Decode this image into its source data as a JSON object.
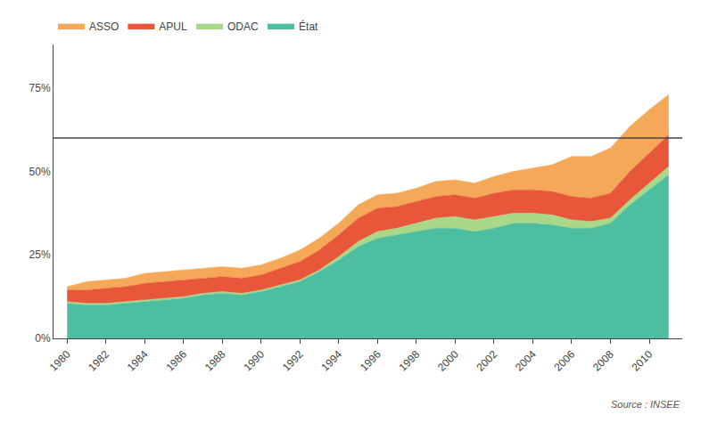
{
  "chart_data": {
    "type": "area",
    "stacked": true,
    "x": [
      1980,
      1981,
      1982,
      1983,
      1984,
      1985,
      1986,
      1987,
      1988,
      1989,
      1990,
      1991,
      1992,
      1993,
      1994,
      1995,
      1996,
      1997,
      1998,
      1999,
      2000,
      2001,
      2002,
      2003,
      2004,
      2005,
      2006,
      2007,
      2008,
      2009,
      2010,
      2011
    ],
    "series": [
      {
        "name": "État",
        "color": "#4DBFA0",
        "values": [
          10.5,
          10.0,
          10.0,
          10.5,
          11.0,
          11.5,
          12.0,
          13.0,
          13.5,
          13.0,
          14.0,
          15.5,
          17.0,
          20.0,
          23.5,
          27.5,
          30.0,
          31.0,
          32.0,
          33.0,
          33.0,
          32.0,
          33.0,
          34.5,
          34.5,
          34.0,
          33.0,
          33.0,
          34.5,
          40.0,
          44.5,
          49.0
        ]
      },
      {
        "name": "ODAC",
        "color": "#A8D888",
        "values": [
          0.5,
          0.5,
          0.5,
          0.5,
          0.5,
          0.5,
          0.5,
          0.5,
          0.5,
          0.5,
          0.5,
          0.5,
          0.5,
          0.5,
          1.0,
          1.5,
          2.0,
          2.0,
          2.5,
          3.0,
          3.5,
          3.5,
          3.5,
          3.0,
          3.0,
          3.0,
          2.5,
          2.0,
          1.5,
          1.5,
          2.0,
          2.5
        ]
      },
      {
        "name": "APUL",
        "color": "#E8573A",
        "values": [
          3.5,
          4.0,
          4.5,
          4.5,
          5.0,
          5.0,
          5.0,
          4.5,
          4.5,
          4.5,
          4.5,
          5.0,
          5.5,
          6.0,
          6.5,
          7.0,
          7.0,
          6.5,
          6.5,
          6.5,
          6.5,
          6.5,
          7.0,
          7.0,
          7.0,
          7.0,
          7.0,
          7.0,
          7.5,
          8.5,
          9.0,
          9.5
        ]
      },
      {
        "name": "ASSO",
        "color": "#F5A858",
        "values": [
          1.0,
          2.5,
          2.5,
          2.5,
          3.0,
          3.0,
          3.0,
          3.0,
          3.0,
          3.0,
          3.0,
          3.0,
          3.5,
          3.5,
          3.5,
          4.0,
          4.0,
          4.0,
          4.0,
          4.5,
          4.5,
          4.5,
          5.0,
          5.5,
          6.5,
          8.0,
          12.0,
          12.5,
          13.5,
          13.5,
          13.0,
          12.0
        ]
      }
    ],
    "xlim": [
      1979.3,
      2011.7
    ],
    "xticks": [
      1980,
      1982,
      1984,
      1986,
      1988,
      1990,
      1992,
      1994,
      1996,
      1998,
      2000,
      2002,
      2004,
      2006,
      2008,
      2010
    ],
    "ylim": [
      0,
      88
    ],
    "yticks": [
      {
        "value": 0,
        "label": "0%"
      },
      {
        "value": 25,
        "label": "25%"
      },
      {
        "value": 50,
        "label": "50%"
      },
      {
        "value": 75,
        "label": "75%"
      }
    ],
    "hline": {
      "y": 60,
      "color": "#444444"
    },
    "annotations": [
      "Source : INSEE"
    ],
    "grid": false,
    "legend": "top-left"
  }
}
